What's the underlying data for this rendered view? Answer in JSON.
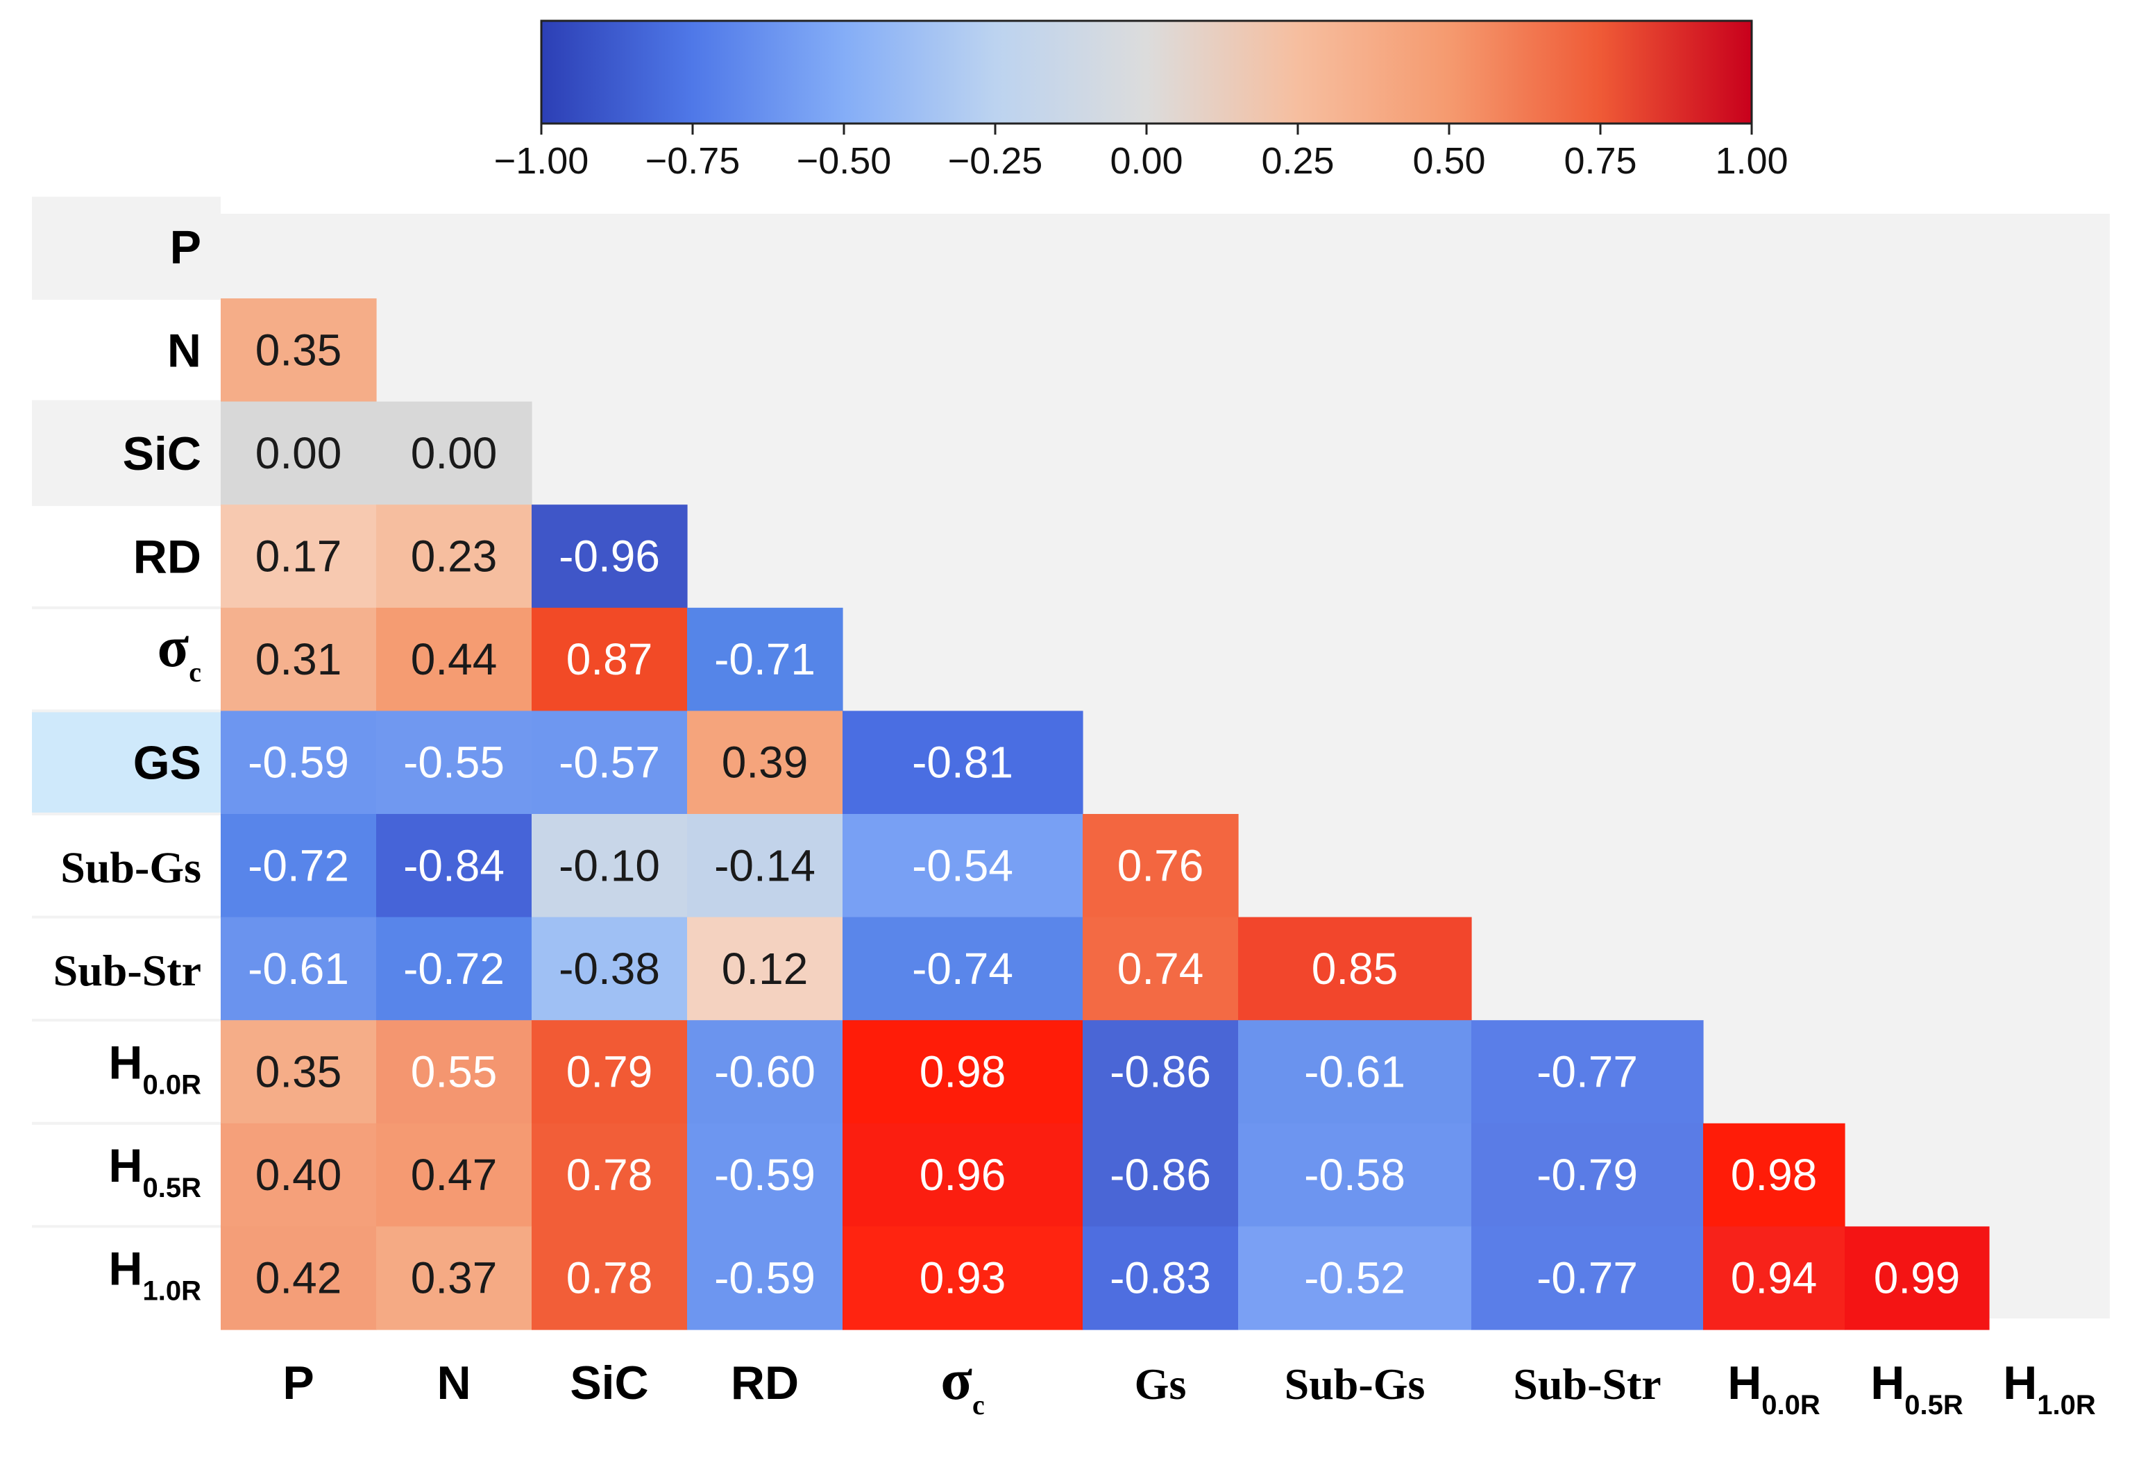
{
  "chart_data": {
    "type": "heatmap",
    "variables": [
      {
        "key": "P",
        "row_main": "P",
        "row_sub": "",
        "row_style": "sans",
        "col_main": "P",
        "col_sub": "",
        "col_style": "sans"
      },
      {
        "key": "N",
        "row_main": "N",
        "row_sub": "",
        "row_style": "sans",
        "col_main": "N",
        "col_sub": "",
        "col_style": "sans"
      },
      {
        "key": "SiC",
        "row_main": "SiC",
        "row_sub": "",
        "row_style": "sans",
        "col_main": "SiC",
        "col_sub": "",
        "col_style": "sans"
      },
      {
        "key": "RD",
        "row_main": "RD",
        "row_sub": "",
        "row_style": "sans",
        "col_main": "RD",
        "col_sub": "",
        "col_style": "sans"
      },
      {
        "key": "sigma_c",
        "row_main": "σ",
        "row_sub": "c",
        "row_style": "serif",
        "col_main": "σ",
        "col_sub": "c",
        "col_style": "serif"
      },
      {
        "key": "GS",
        "row_main": "GS",
        "row_sub": "",
        "row_style": "sans",
        "col_main": "Gs",
        "col_sub": "",
        "col_style": "serif"
      },
      {
        "key": "Sub-Gs",
        "row_main": "Sub-Gs",
        "row_sub": "",
        "row_style": "serif",
        "col_main": "Sub-Gs",
        "col_sub": "",
        "col_style": "serif"
      },
      {
        "key": "Sub-Str",
        "row_main": "Sub-Str",
        "row_sub": "",
        "row_style": "serif",
        "col_main": "Sub-Str",
        "col_sub": "",
        "col_style": "serif"
      },
      {
        "key": "H0.0R",
        "row_main": "H",
        "row_sub": "0.0R",
        "row_style": "sans",
        "col_main": "H",
        "col_sub": "0.0R",
        "col_style": "sans"
      },
      {
        "key": "H0.5R",
        "row_main": "H",
        "row_sub": "0.5R",
        "row_style": "sans",
        "col_main": "H",
        "col_sub": "0.5R",
        "col_style": "sans"
      },
      {
        "key": "H1.0R",
        "row_main": "H",
        "row_sub": "1.0R",
        "row_style": "sans",
        "col_main": "H",
        "col_sub": "1.0R",
        "col_style": "sans"
      }
    ],
    "matrix": [
      [],
      [
        0.35
      ],
      [
        0.0,
        0.0
      ],
      [
        0.17,
        0.23,
        -0.96
      ],
      [
        0.31,
        0.44,
        0.87,
        -0.71
      ],
      [
        -0.59,
        -0.55,
        -0.57,
        0.39,
        -0.81
      ],
      [
        -0.72,
        -0.84,
        -0.1,
        -0.14,
        -0.54,
        0.76
      ],
      [
        -0.61,
        -0.72,
        -0.38,
        0.12,
        -0.74,
        0.74,
        0.85
      ],
      [
        0.35,
        0.55,
        0.79,
        -0.6,
        0.98,
        -0.86,
        -0.61,
        -0.77
      ],
      [
        0.4,
        0.47,
        0.78,
        -0.59,
        0.96,
        -0.86,
        -0.58,
        -0.79,
        0.98
      ],
      [
        0.42,
        0.37,
        0.78,
        -0.59,
        0.93,
        -0.83,
        -0.52,
        -0.77,
        0.94,
        0.99
      ]
    ],
    "value_labels": [
      [],
      [
        "0.35"
      ],
      [
        "0.00",
        "0.00"
      ],
      [
        "0.17",
        "0.23",
        "-0.96"
      ],
      [
        "0.31",
        "0.44",
        "0.87",
        "-0.71"
      ],
      [
        "-0.59",
        "-0.55",
        "-0.57",
        "0.39",
        "-0.81"
      ],
      [
        "-0.72",
        "-0.84",
        "-0.10",
        "-0.14",
        "-0.54",
        "0.76"
      ],
      [
        "-0.61",
        "-0.72",
        "-0.38",
        "0.12",
        "-0.74",
        "0.74",
        "0.85"
      ],
      [
        "0.35",
        "0.55",
        "0.79",
        "-0.60",
        "0.98",
        "-0.86",
        "-0.61",
        "-0.77"
      ],
      [
        "0.40",
        "0.47",
        "0.78",
        "-0.59",
        "0.96",
        "-0.86",
        "-0.58",
        "-0.79",
        "0.98"
      ],
      [
        "0.42",
        "0.37",
        "0.78",
        "-0.59",
        "0.93",
        "-0.83",
        "-0.52",
        "-0.77",
        "0.94",
        "0.99"
      ]
    ],
    "colorbar": {
      "range": [
        -1.0,
        1.0
      ],
      "ticks": [
        -1.0,
        -0.75,
        -0.5,
        -0.25,
        0.0,
        0.25,
        0.5,
        0.75,
        1.0
      ],
      "tick_labels": [
        "−1.00",
        "−0.75",
        "−0.50",
        "−0.25",
        "0.00",
        "0.25",
        "0.50",
        "0.75",
        "1.00"
      ],
      "placement": "top",
      "colormap": "coolwarm",
      "stops": [
        {
          "v": -1.0,
          "color": "#2c3fb5"
        },
        {
          "v": -0.75,
          "color": "#4f78e8"
        },
        {
          "v": -0.5,
          "color": "#84adf7"
        },
        {
          "v": -0.25,
          "color": "#bcd3f0"
        },
        {
          "v": 0.0,
          "color": "#dcdcdc"
        },
        {
          "v": 0.25,
          "color": "#f6be9f"
        },
        {
          "v": 0.5,
          "color": "#f59a6f"
        },
        {
          "v": 0.75,
          "color": "#ef5a36"
        },
        {
          "v": 1.0,
          "color": "#c8001c"
        }
      ]
    },
    "cell_colors": {
      "0.35": "#f5ad88",
      "0": "#d8d8d8",
      "0.17": "#f7c9b0",
      "0.23": "#f6be9f",
      "-0.96": "#3f56c8",
      "0.31": "#f5b18e",
      "0.44": "#f59c72",
      "0.87": "#f24a26",
      "-0.71": "#5585e8",
      "-0.59": "#6d96f0",
      "-0.55": "#7098f0",
      "-0.57": "#6e97f0",
      "0.39": "#f5a47c",
      "-0.81": "#4a6ee2",
      "-0.72": "#5885ea",
      "-0.84": "#4664d8",
      "-0.1": "#c8d6e8",
      "-0.14": "#c2d3ea",
      "-0.54": "#78a0f4",
      "0.76": "#f36640",
      "-0.61": "#6a93ee",
      "-0.38": "#9fc0f4",
      "0.12": "#f4d2c0",
      "-0.74": "#5a86ea",
      "0.74": "#f36a44",
      "0.85": "#f2462c",
      "0.55": "#f49670",
      "0.79": "#f25a34",
      "-0.6": "#6b94ee",
      "0.98": "#ff1c08",
      "-0.86": "#4a66d6",
      "-0.77": "#5a7ee8",
      "0.4": "#f5a07a",
      "0.47": "#f59a72",
      "0.78": "#f25e38",
      "0.96": "#fb1e10",
      "-0.58": "#6d95f0",
      "-0.79": "#5a7ce6",
      "0.42": "#f49e78",
      "0.37": "#f5aa84",
      "0.93": "#ff2410",
      "-0.83": "#4e6ee0",
      "-0.52": "#7aa0f4",
      "0.94": "#f7221a",
      "0.99": "#f41414"
    }
  }
}
